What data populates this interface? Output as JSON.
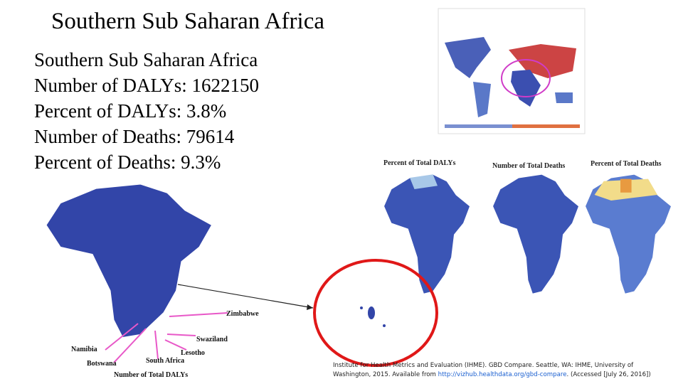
{
  "header": {
    "title": "Southern Sub Saharan Africa"
  },
  "summary": {
    "lines": [
      "Southern Sub Saharan Africa",
      "Number of DALYs: 1622150",
      "Percent of DALYs: 3.8%",
      "Number of Deaths: 79614",
      "Percent of Deaths: 9.3%"
    ]
  },
  "small_maps": {
    "captions": [
      "Percent of Total DALYs",
      "Number of Total Deaths",
      "Percent of Total Deaths"
    ]
  },
  "main_map": {
    "caption": "Number of Total DALYs",
    "labels": {
      "zimbabwe": "Zimbabwe",
      "swaziland": "Swaziland",
      "namibia": "Namibia",
      "lesotho": "Lesotho",
      "botswana": "Botswana",
      "south_africa": "South Africa"
    }
  },
  "citation": {
    "before": "Institute for Health Metrics and Evaluation (IHME). GBD Compare. Seattle, WA: IHME, University of Washington, 2015. Available from ",
    "link": "http://vizhub.healthdata.org/gbd-compare",
    "after": ". (Accessed [July 26, 2016])"
  }
}
